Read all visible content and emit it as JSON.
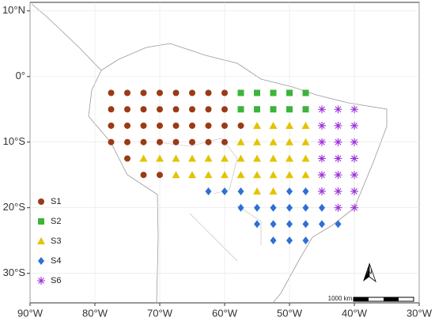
{
  "chart_data": {
    "type": "scatter",
    "xlim": [
      -90,
      -30
    ],
    "ylim": [
      -34.5,
      11.3
    ],
    "xticks": [
      {
        "value": -90,
        "label": "90°W"
      },
      {
        "value": -80,
        "label": "80°W"
      },
      {
        "value": -70,
        "label": "70°W"
      },
      {
        "value": -60,
        "label": "60°W"
      },
      {
        "value": -50,
        "label": "50°W"
      },
      {
        "value": -40,
        "label": "40°W"
      },
      {
        "value": -30,
        "label": "30°W"
      }
    ],
    "yticks": [
      {
        "value": 10,
        "label": "10°N"
      },
      {
        "value": 0,
        "label": "0°"
      },
      {
        "value": -10,
        "label": "10°S"
      },
      {
        "value": -20,
        "label": "20°S"
      },
      {
        "value": -30,
        "label": "30°S"
      }
    ],
    "grid": true,
    "scale_label": "1000 km",
    "north_label": "N",
    "series": [
      {
        "name": "S1",
        "color": "#9a3a18",
        "marker": "circle",
        "x": [
          -77.5,
          -75,
          -72.5,
          -70,
          -67.5,
          -65,
          -62.5,
          -60,
          -77.5,
          -75,
          -72.5,
          -70,
          -67.5,
          -65,
          -62.5,
          -60,
          -77.5,
          -75,
          -72.5,
          -70,
          -67.5,
          -65,
          -62.5,
          -60,
          -57.5,
          -77.5,
          -75,
          -72.5,
          -70,
          -67.5,
          -65,
          -62.5,
          -60,
          -75,
          -72.5,
          -70
        ],
        "y": [
          -2.5,
          -2.5,
          -2.5,
          -2.5,
          -2.5,
          -2.5,
          -2.5,
          -2.5,
          -5,
          -5,
          -5,
          -5,
          -5,
          -5,
          -5,
          -5,
          -7.5,
          -7.5,
          -7.5,
          -7.5,
          -7.5,
          -7.5,
          -7.5,
          -7.5,
          -7.5,
          -10,
          -10,
          -10,
          -10,
          -10,
          -10,
          -10,
          -10,
          -12.5,
          -15,
          -15
        ]
      },
      {
        "name": "S2",
        "color": "#3cb43c",
        "marker": "square",
        "x": [
          -57.5,
          -55,
          -52.5,
          -50,
          -47.5,
          -57.5,
          -55,
          -52.5,
          -50,
          -47.5
        ],
        "y": [
          -2.5,
          -2.5,
          -2.5,
          -2.5,
          -2.5,
          -5,
          -5,
          -5,
          -5,
          -5
        ]
      },
      {
        "name": "S3",
        "color": "#e3c400",
        "marker": "triangle",
        "x": [
          -55,
          -52.5,
          -50,
          -47.5,
          -57.5,
          -55,
          -52.5,
          -50,
          -47.5,
          -72.5,
          -70,
          -67.5,
          -65,
          -62.5,
          -60,
          -57.5,
          -55,
          -52.5,
          -50,
          -47.5,
          -67.5,
          -65,
          -62.5,
          -60,
          -57.5,
          -55,
          -52.5,
          -50,
          -47.5,
          -55,
          -52.5
        ],
        "y": [
          -7.5,
          -7.5,
          -7.5,
          -7.5,
          -10,
          -10,
          -10,
          -10,
          -10,
          -12.5,
          -12.5,
          -12.5,
          -12.5,
          -12.5,
          -12.5,
          -12.5,
          -12.5,
          -12.5,
          -12.5,
          -12.5,
          -15,
          -15,
          -15,
          -15,
          -15,
          -15,
          -15,
          -15,
          -15,
          -17.5,
          -17.5
        ]
      },
      {
        "name": "S4",
        "color": "#2f6fd6",
        "marker": "diamond",
        "x": [
          -62.5,
          -60,
          -57.5,
          -50,
          -47.5,
          -57.5,
          -55,
          -52.5,
          -50,
          -47.5,
          -45,
          -55,
          -52.5,
          -50,
          -47.5,
          -45,
          -42.5,
          -52.5,
          -50,
          -47.5
        ],
        "y": [
          -17.5,
          -17.5,
          -17.5,
          -17.5,
          -17.5,
          -20,
          -20,
          -20,
          -20,
          -20,
          -20,
          -22.5,
          -22.5,
          -22.5,
          -22.5,
          -22.5,
          -22.5,
          -25,
          -25,
          -25
        ]
      },
      {
        "name": "S6",
        "color": "#9b30d9",
        "marker": "asterisk",
        "x": [
          -45,
          -42.5,
          -40,
          -45,
          -42.5,
          -40,
          -45,
          -42.5,
          -40,
          -45,
          -42.5,
          -40,
          -45,
          -42.5,
          -40,
          -45,
          -42.5,
          -40,
          -42.5,
          -40
        ],
        "y": [
          -5,
          -5,
          -5,
          -7.5,
          -7.5,
          -7.5,
          -10,
          -10,
          -10,
          -12.5,
          -12.5,
          -12.5,
          -15,
          -15,
          -15,
          -17.5,
          -17.5,
          -17.5,
          -20,
          -20
        ]
      }
    ]
  }
}
